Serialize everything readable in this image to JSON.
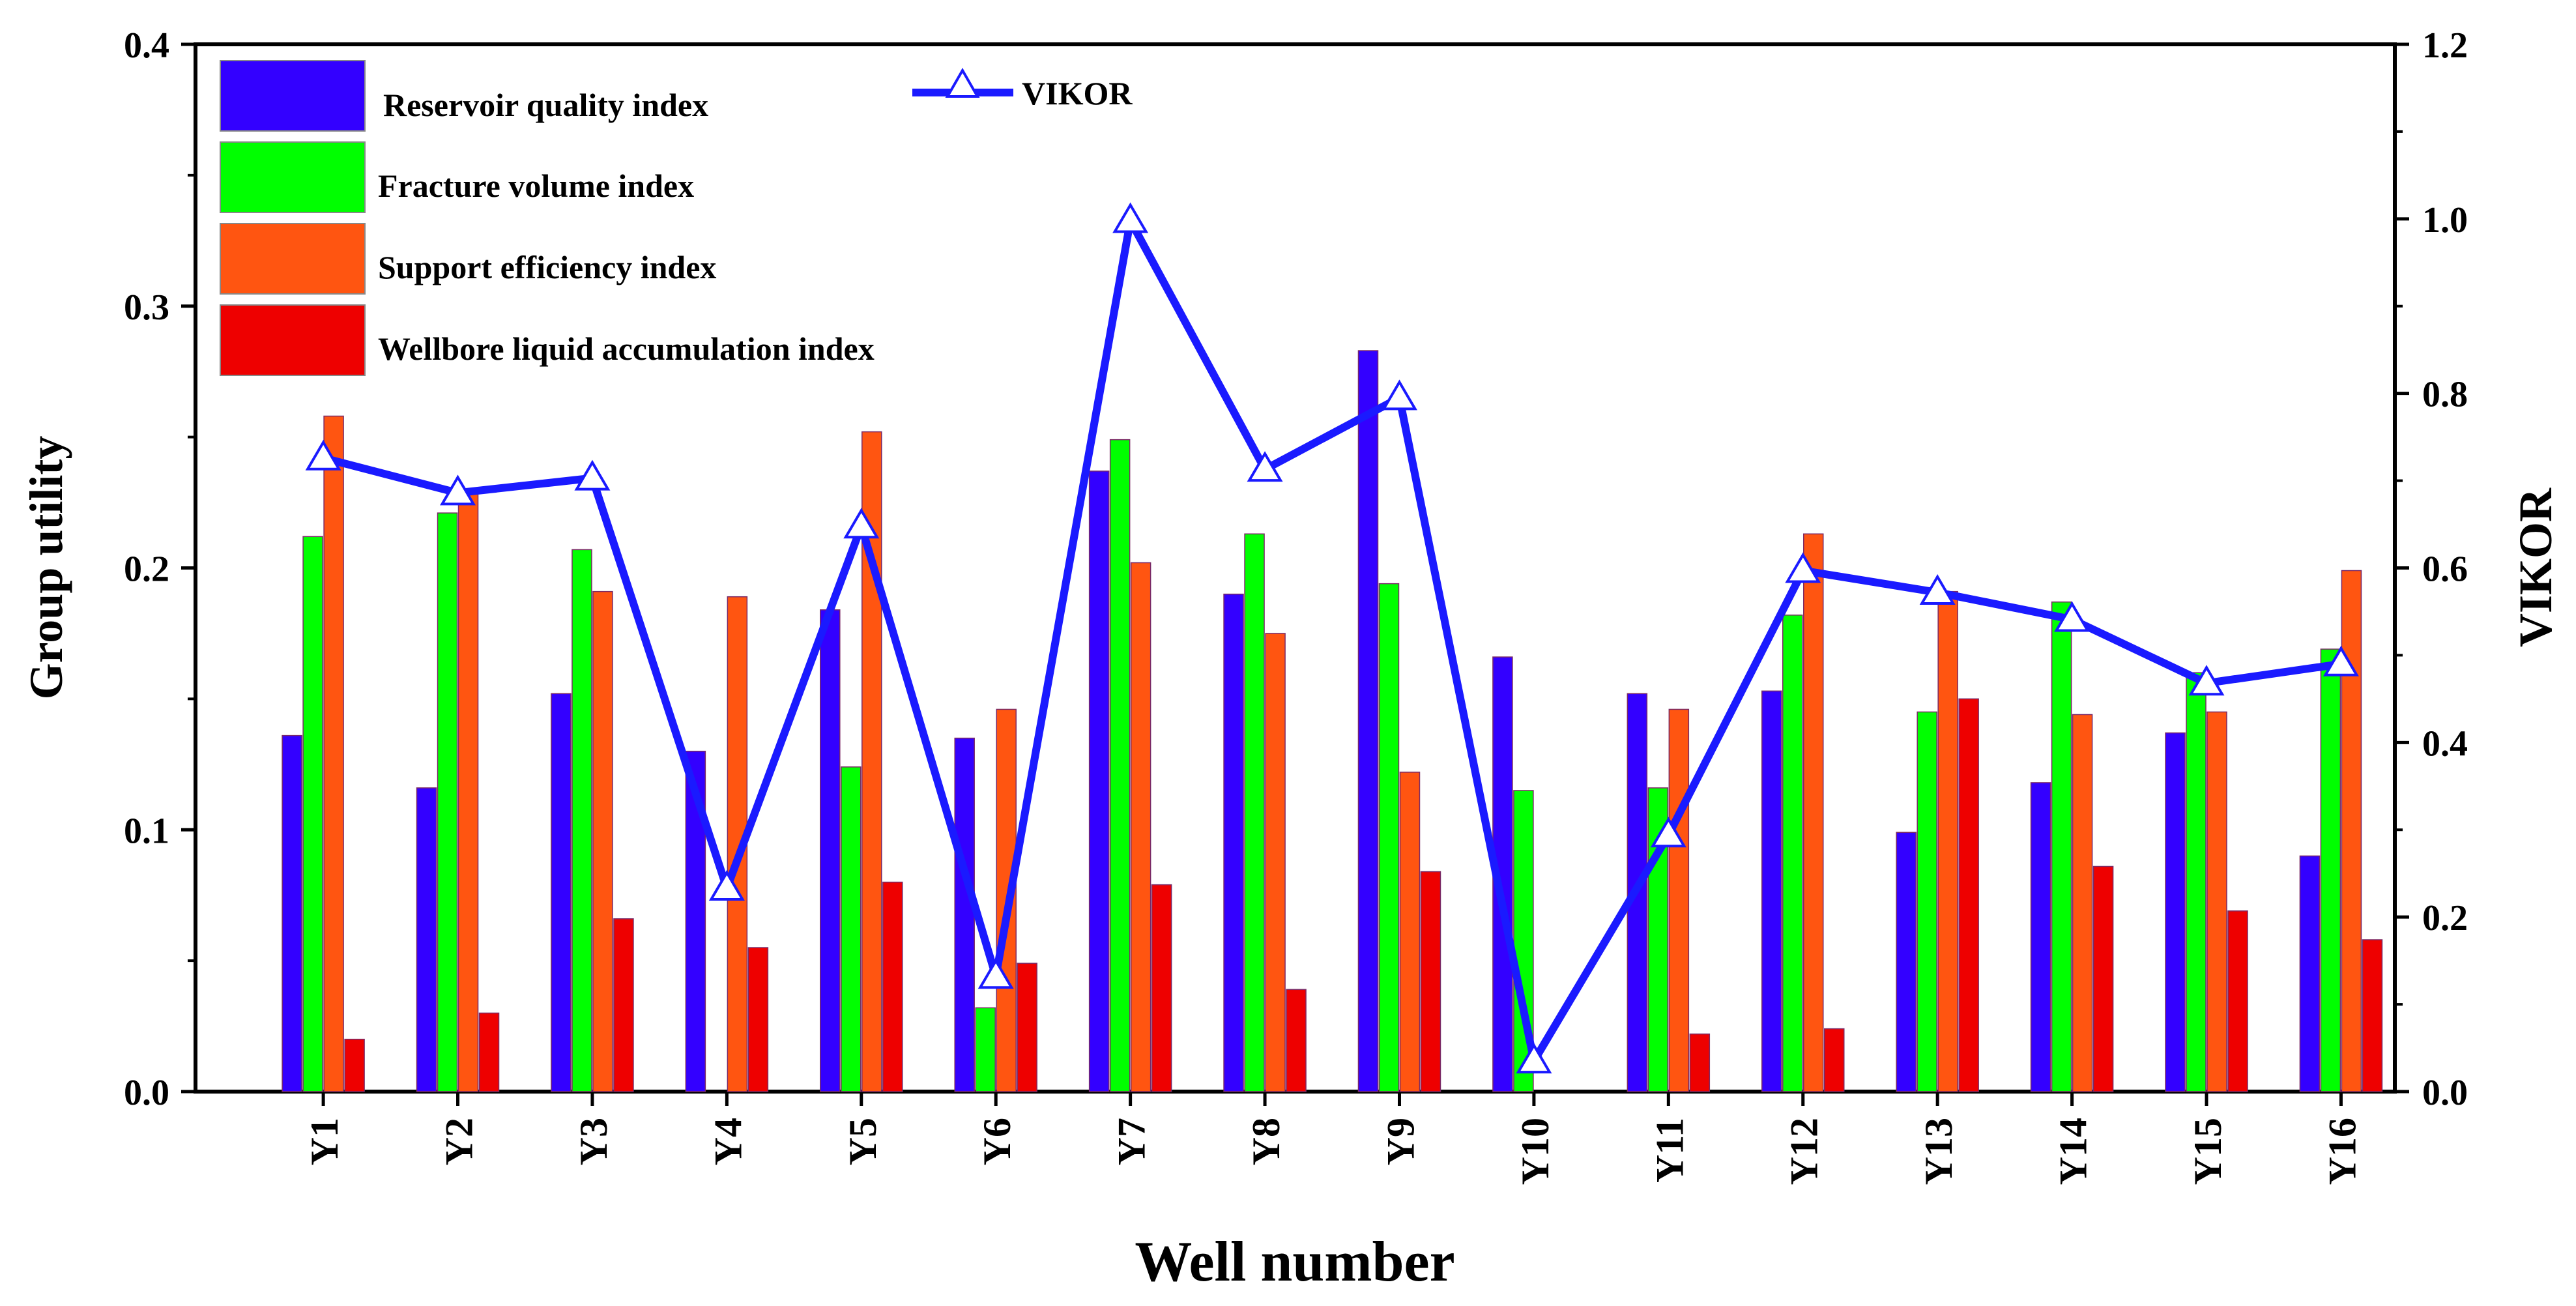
{
  "chart_data": {
    "type": "bar",
    "xlabel": "Well number",
    "ylabel": "Group utility",
    "y2label": "VIKOR",
    "ylim": [
      0,
      0.4
    ],
    "y2lim": [
      0,
      1.2
    ],
    "yticks": [
      "0.0",
      "0.1",
      "0.2",
      "0.3",
      "0.4"
    ],
    "y2ticks": [
      "0.0",
      "0.2",
      "0.4",
      "0.6",
      "0.8",
      "1.0",
      "1.2"
    ],
    "categories": [
      "Y1",
      "Y2",
      "Y3",
      "Y4",
      "Y5",
      "Y6",
      "Y7",
      "Y8",
      "Y9",
      "Y10",
      "Y11",
      "Y12",
      "Y13",
      "Y14",
      "Y15",
      "Y16"
    ],
    "series": [
      {
        "name": "Reservoir quality index",
        "color": "#3300ff",
        "values": [
          0.136,
          0.116,
          0.152,
          0.13,
          0.184,
          0.135,
          0.237,
          0.19,
          0.283,
          0.166,
          0.152,
          0.153,
          0.099,
          0.118,
          0.137,
          0.09
        ]
      },
      {
        "name": "Fracture volume index",
        "color": "#00ff00",
        "values": [
          0.212,
          0.221,
          0.207,
          0.0,
          0.124,
          0.032,
          0.249,
          0.213,
          0.194,
          0.115,
          0.116,
          0.182,
          0.145,
          0.187,
          0.16,
          0.169
        ]
      },
      {
        "name": "Support efficiency index",
        "color": "#ff5511",
        "values": [
          0.258,
          0.23,
          0.191,
          0.189,
          0.252,
          0.146,
          0.202,
          0.175,
          0.122,
          0.0,
          0.146,
          0.213,
          0.191,
          0.144,
          0.145,
          0.199
        ]
      },
      {
        "name": "Wellbore liquid accumulation index",
        "color": "#ee0000",
        "values": [
          0.02,
          0.03,
          0.066,
          0.055,
          0.08,
          0.049,
          0.079,
          0.039,
          0.084,
          0.0,
          0.022,
          0.024,
          0.15,
          0.086,
          0.069,
          0.058
        ]
      }
    ],
    "line_series": {
      "name": "VIKOR",
      "color": "#1a1aff",
      "axis": "right",
      "values": [
        0.726,
        0.686,
        0.703,
        0.233,
        0.648,
        0.132,
        0.998,
        0.713,
        0.795,
        0.035,
        0.294,
        0.597,
        0.572,
        0.541,
        0.468,
        0.49
      ]
    }
  }
}
